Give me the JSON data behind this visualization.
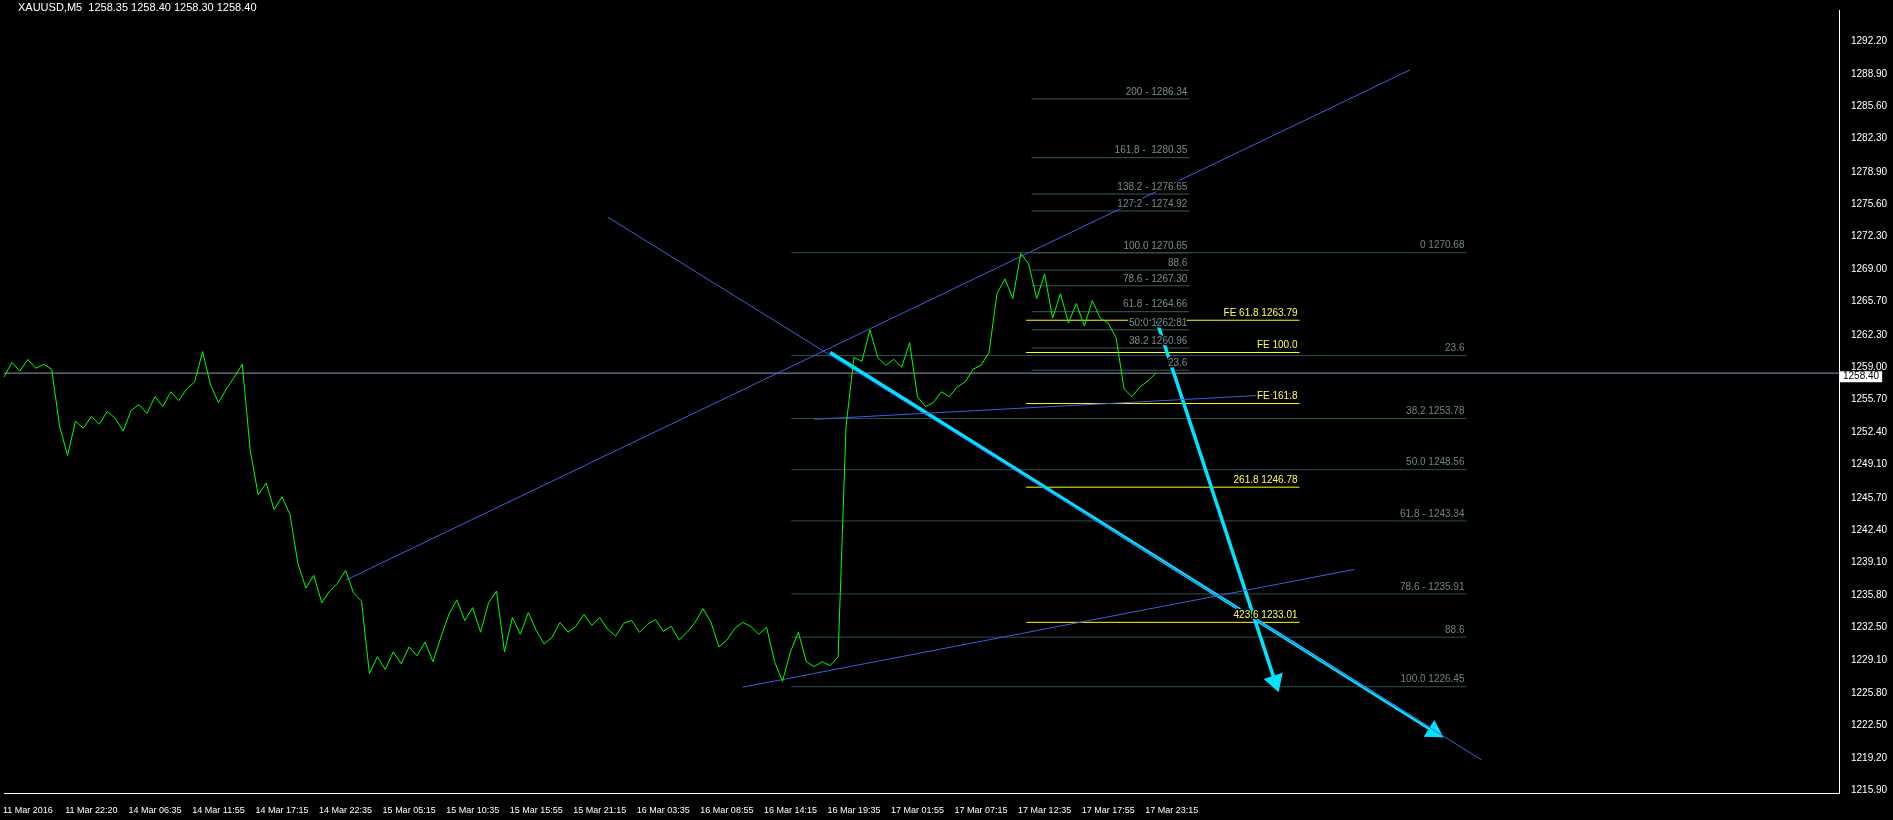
{
  "chart_data": {
    "type": "line",
    "title": "XAUUSD,M5  1258.35 1258.40 1258.30 1258.40",
    "categories": [
      null,
      null,
      null,
      "11 Mar 2016",
      null,
      null,
      null,
      null,
      null,
      null,
      null,
      "11 Mar 22:20",
      null,
      null,
      null,
      null,
      null,
      null,
      null,
      "14 Mar 06:35",
      null,
      null,
      null,
      null,
      null,
      null,
      null,
      "14 Mar 11:55",
      null,
      null,
      null,
      null,
      null,
      null,
      null,
      "14 Mar 17:15",
      null,
      null,
      null,
      null,
      null,
      null,
      null,
      "14 Mar 22:35",
      null,
      null,
      null,
      null,
      null,
      null,
      null,
      "15 Mar 05:15",
      null,
      null,
      null,
      null,
      null,
      null,
      null,
      "15 Mar 10:35",
      null,
      null,
      null,
      null,
      null,
      null,
      null,
      "15 Mar 15:55",
      null,
      null,
      null,
      null,
      null,
      null,
      null,
      "15 Mar 21:15",
      null,
      null,
      null,
      null,
      null,
      null,
      null,
      "16 Mar 03:35",
      null,
      null,
      null,
      null,
      null,
      null,
      null,
      "16 Mar 08:55",
      null,
      null,
      null,
      null,
      null,
      null,
      null,
      "16 Mar 14:15",
      null,
      null,
      null,
      null,
      null,
      null,
      null,
      "16 Mar 19:35",
      null,
      null,
      null,
      null,
      null,
      null,
      null,
      "17 Mar 01:55",
      null,
      null,
      null,
      null,
      null,
      null,
      null,
      "17 Mar 07:15",
      null,
      null,
      null,
      null,
      null,
      null,
      null,
      "17 Mar 12:35",
      null,
      null,
      null,
      null,
      null,
      null,
      null,
      "17 Mar 17:55",
      null,
      null,
      null,
      null,
      null,
      null,
      null,
      "17 Mar 23:15",
      null,
      null,
      null,
      null,
      null,
      null,
      null,
      null,
      null,
      null,
      null,
      null,
      null,
      null,
      null,
      null,
      null,
      null,
      null,
      null,
      null,
      null,
      null,
      null,
      null,
      null,
      null,
      null,
      null,
      null,
      null,
      null,
      null,
      null,
      null,
      null,
      null,
      null,
      null,
      null,
      null,
      null,
      null,
      null,
      null,
      null,
      null,
      null,
      null,
      null,
      null,
      null,
      null,
      null,
      null,
      null,
      null,
      null,
      null,
      null,
      null,
      null,
      null,
      null,
      null,
      null,
      null,
      null,
      null,
      null,
      null,
      null,
      null,
      null,
      null,
      null,
      null,
      null,
      null,
      null,
      null,
      null,
      null,
      null
    ],
    "series": [
      {
        "color": "#00ff00",
        "values": [
          1258.0,
          1259.5,
          1258.6,
          1259.8,
          1258.9,
          1259.3,
          1258.8,
          1253.0,
          1250.0,
          1253.5,
          1252.8,
          1254.0,
          1253.2,
          1254.5,
          1253.8,
          1252.5,
          1254.6,
          1255.2,
          1254.3,
          1256.0,
          1255.0,
          1256.5,
          1255.6,
          1256.8,
          1257.5,
          1260.6,
          1257.2,
          1255.4,
          1256.8,
          1258.0,
          1259.3,
          1250.5,
          1246.0,
          1247.2,
          1244.5,
          1245.8,
          1244.0,
          1239.0,
          1236.5,
          1237.8,
          1235.0,
          1236.2,
          1237.0,
          1238.3,
          1236.0,
          1235.2,
          1227.8,
          1229.5,
          1228.2,
          1230.0,
          1228.8,
          1230.5,
          1229.6,
          1231.0,
          1229.0,
          1231.5,
          1233.8,
          1235.3,
          1233.2,
          1234.5,
          1232.0,
          1235.0,
          1236.2,
          1230.0,
          1233.5,
          1231.8,
          1234.0,
          1232.2,
          1230.8,
          1231.5,
          1233.0,
          1232.0,
          1232.6,
          1233.8,
          1232.7,
          1233.5,
          1232.3,
          1231.6,
          1232.9,
          1233.2,
          1232.0,
          1232.8,
          1233.3,
          1232.1,
          1232.6,
          1231.2,
          1232.0,
          1233.0,
          1234.4,
          1233.0,
          1230.5,
          1231.2,
          1232.4,
          1233.0,
          1232.6,
          1231.8,
          1232.5,
          1229.0,
          1227.0,
          1230.0,
          1232.0,
          1229.0,
          1228.5,
          1229.0,
          1228.6,
          1229.5,
          1253.0,
          1260.0,
          1259.6,
          1262.8,
          1260.0,
          1259.2,
          1259.8,
          1259.0,
          1261.5,
          1256.0,
          1255.0,
          1255.4,
          1256.5,
          1256.0,
          1257.0,
          1257.5,
          1258.8,
          1259.2,
          1260.5,
          1266.5,
          1268.0,
          1266.0,
          1270.6,
          1269.5,
          1266.0,
          1268.5,
          1264.0,
          1266.5,
          1263.5,
          1265.5,
          1263.2,
          1265.8,
          1264.0,
          1263.5,
          1262.0,
          1256.8,
          1256.0,
          1257.0,
          1257.6,
          1258.4,
          null,
          null,
          null,
          null,
          null,
          null,
          null,
          null,
          null,
          null,
          null,
          null,
          null,
          null,
          null,
          null,
          null,
          null,
          null,
          null,
          null,
          null,
          null,
          null,
          null,
          null,
          null,
          null,
          null,
          null,
          null,
          null,
          null,
          null,
          null,
          null,
          null,
          null,
          null,
          null,
          null,
          null,
          null,
          null,
          null,
          null,
          null,
          null,
          null,
          null,
          null,
          null,
          null,
          null,
          null,
          null,
          null,
          null,
          null,
          null,
          null,
          null,
          null,
          null,
          null,
          null,
          null,
          null,
          null,
          null,
          null,
          null,
          null,
          null,
          null,
          null,
          null,
          null,
          null,
          null,
          null,
          null,
          null,
          null,
          null,
          null
        ]
      },
      {
        "color": "#3f5fe0",
        "values": [
          null,
          null,
          null,
          null,
          null,
          null,
          null,
          null,
          null,
          null,
          null,
          null,
          null,
          null,
          null,
          null,
          null,
          null,
          null,
          null,
          null,
          null,
          null,
          null,
          null,
          null,
          null,
          null,
          null,
          null,
          null,
          null,
          null,
          null,
          null,
          null,
          null,
          null,
          null,
          null,
          null,
          null,
          null,
          1237.3,
          null,
          null,
          null,
          null,
          null,
          null,
          null,
          null,
          null,
          null,
          null,
          null,
          null,
          null,
          null,
          null,
          null,
          null,
          null,
          null,
          null,
          null,
          null,
          null,
          null,
          null,
          null,
          null,
          null,
          null,
          null,
          null,
          null,
          null,
          null,
          null,
          null,
          null,
          null,
          null,
          null,
          null,
          null,
          null,
          null,
          null,
          null,
          null,
          null,
          null,
          null,
          null,
          null,
          null,
          null,
          null,
          null,
          null,
          null,
          null,
          null,
          null,
          null,
          null,
          null,
          null,
          null,
          null,
          null,
          null,
          null,
          null,
          null,
          null,
          null,
          null,
          null,
          null,
          null,
          null,
          null,
          null,
          null,
          null,
          null,
          null,
          null,
          null,
          null,
          null,
          null,
          null,
          null,
          null,
          null,
          null,
          null,
          null,
          null,
          null,
          null,
          null,
          null,
          null,
          null,
          null,
          null,
          null,
          null,
          null,
          null,
          null,
          null,
          null,
          null,
          null,
          null,
          null,
          null,
          null,
          null,
          null,
          null,
          null,
          null,
          null,
          null,
          null,
          null,
          null,
          null,
          null,
          null,
          1289.3,
          null,
          null,
          null,
          null,
          null,
          null,
          null,
          null,
          null,
          null,
          null,
          null,
          null,
          null,
          null,
          null,
          null,
          null,
          null,
          null,
          null,
          null,
          null,
          null,
          null,
          null,
          null,
          null,
          null,
          null,
          null,
          null,
          null,
          null,
          null,
          null,
          null,
          null,
          null,
          null,
          null,
          null,
          null,
          null,
          null,
          null,
          null,
          null,
          null,
          null,
          null,
          null,
          null,
          null
        ]
      },
      {
        "color": "#3f5fe0",
        "values": [
          null,
          null,
          null,
          null,
          null,
          null,
          null,
          null,
          null,
          null,
          null,
          null,
          null,
          null,
          null,
          null,
          null,
          null,
          null,
          null,
          null,
          null,
          null,
          null,
          null,
          null,
          null,
          null,
          null,
          null,
          null,
          null,
          null,
          null,
          null,
          null,
          null,
          null,
          null,
          null,
          null,
          null,
          null,
          null,
          null,
          null,
          null,
          null,
          null,
          null,
          null,
          null,
          null,
          null,
          null,
          null,
          null,
          null,
          null,
          null,
          null,
          null,
          null,
          null,
          null,
          null,
          null,
          null,
          null,
          null,
          null,
          null,
          null,
          null,
          null,
          null,
          1274.3,
          null,
          null,
          null,
          null,
          null,
          null,
          null,
          null,
          null,
          null,
          null,
          null,
          null,
          null,
          null,
          null,
          null,
          null,
          null,
          null,
          null,
          null,
          null,
          null,
          null,
          null,
          null,
          null,
          null,
          null,
          null,
          null,
          null,
          null,
          null,
          null,
          null,
          null,
          null,
          null,
          null,
          null,
          null,
          null,
          null,
          null,
          null,
          null,
          null,
          null,
          null,
          null,
          null,
          null,
          null,
          null,
          null,
          null,
          null,
          null,
          null,
          null,
          null,
          null,
          null,
          null,
          null,
          null,
          null,
          null,
          null,
          null,
          null,
          null,
          null,
          null,
          null,
          null,
          null,
          null,
          null,
          null,
          null,
          null,
          null,
          null,
          null,
          null,
          null,
          null,
          null,
          null,
          null,
          null,
          null,
          null,
          null,
          null,
          null,
          null,
          null,
          null,
          null,
          null,
          null,
          null,
          null,
          null,
          null,
          1219.0,
          null,
          null,
          null,
          null,
          null,
          null,
          null,
          null,
          null,
          null,
          null,
          null,
          null,
          null,
          null,
          null,
          null,
          null,
          null,
          null,
          null,
          null,
          null,
          null,
          null,
          null,
          null,
          null,
          null,
          null,
          null,
          null,
          null,
          null,
          null,
          null,
          null,
          null,
          null,
          null,
          null,
          null,
          null,
          null,
          null
        ]
      },
      {
        "color": "#3f5fe0",
        "values": [
          null,
          null,
          null,
          null,
          null,
          null,
          null,
          null,
          null,
          null,
          null,
          null,
          null,
          null,
          null,
          null,
          null,
          null,
          null,
          null,
          null,
          null,
          null,
          null,
          null,
          null,
          null,
          null,
          null,
          null,
          null,
          null,
          null,
          null,
          null,
          null,
          null,
          null,
          null,
          null,
          null,
          null,
          null,
          null,
          null,
          null,
          null,
          null,
          null,
          null,
          null,
          null,
          null,
          null,
          null,
          null,
          null,
          null,
          null,
          null,
          null,
          null,
          null,
          null,
          null,
          null,
          null,
          null,
          null,
          null,
          null,
          null,
          null,
          null,
          null,
          null,
          null,
          null,
          null,
          null,
          null,
          null,
          null,
          null,
          null,
          null,
          null,
          null,
          null,
          null,
          null,
          null,
          null,
          1226.4,
          null,
          null,
          null,
          null,
          null,
          null,
          null,
          null,
          null,
          null,
          null,
          null,
          null,
          null,
          null,
          null,
          null,
          null,
          null,
          null,
          null,
          null,
          null,
          null,
          null,
          null,
          null,
          null,
          null,
          null,
          null,
          null,
          null,
          null,
          null,
          null,
          null,
          null,
          null,
          null,
          null,
          null,
          null,
          null,
          null,
          null,
          null,
          null,
          null,
          null,
          null,
          null,
          null,
          null,
          null,
          null,
          null,
          null,
          null,
          null,
          null,
          null,
          null,
          null,
          null,
          null,
          null,
          null,
          null,
          null,
          null,
          null,
          null,
          null,
          null,
          null,
          1238.4,
          null,
          null,
          null,
          null,
          null,
          null,
          null,
          null,
          null,
          null,
          null,
          null,
          null,
          null,
          null,
          null,
          null,
          null,
          null,
          null,
          null,
          null,
          null,
          null,
          null,
          null,
          null,
          null,
          null,
          null,
          null,
          null,
          null,
          null,
          null,
          null,
          null,
          null,
          null,
          null,
          null,
          null,
          null,
          null,
          null,
          null,
          null,
          null,
          null,
          null,
          null,
          null,
          null,
          null,
          null,
          null,
          null,
          null,
          null,
          null,
          null
        ]
      },
      {
        "color": "#3f5fe0",
        "values": [
          null,
          null,
          null,
          null,
          null,
          null,
          null,
          null,
          null,
          null,
          null,
          null,
          null,
          null,
          null,
          null,
          null,
          null,
          null,
          null,
          null,
          null,
          null,
          null,
          null,
          null,
          null,
          null,
          null,
          null,
          null,
          null,
          null,
          null,
          null,
          null,
          null,
          null,
          null,
          null,
          null,
          null,
          null,
          null,
          null,
          null,
          null,
          null,
          null,
          null,
          null,
          null,
          null,
          null,
          null,
          null,
          null,
          null,
          null,
          null,
          null,
          null,
          null,
          null,
          null,
          null,
          null,
          null,
          null,
          null,
          null,
          null,
          null,
          null,
          null,
          null,
          null,
          null,
          null,
          null,
          null,
          null,
          null,
          null,
          null,
          null,
          null,
          null,
          null,
          null,
          null,
          null,
          null,
          null,
          null,
          null,
          null,
          null,
          null,
          null,
          null,
          null,
          1253.7,
          null,
          null,
          null,
          null,
          null,
          null,
          null,
          null,
          null,
          null,
          null,
          null,
          null,
          null,
          null,
          null,
          null,
          null,
          null,
          null,
          null,
          null,
          null,
          null,
          null,
          null,
          null,
          null,
          null,
          null,
          null,
          null,
          null,
          null,
          null,
          null,
          null,
          null,
          null,
          null,
          null,
          null,
          null,
          null,
          null,
          null,
          null,
          null,
          null,
          null,
          null,
          null,
          null,
          null,
          null,
          null,
          null,
          null,
          null,
          1256.3,
          null,
          null,
          null,
          null,
          null,
          null,
          null,
          null,
          null,
          null,
          null,
          null,
          null,
          null,
          null,
          null,
          null,
          null,
          null,
          null,
          null,
          null,
          null,
          null,
          null,
          null,
          null,
          null,
          null,
          null,
          null,
          null,
          null,
          null,
          null,
          null,
          null,
          null,
          null,
          null,
          null,
          null,
          null,
          null,
          null,
          null,
          null,
          null,
          null,
          null,
          null,
          null,
          null,
          null,
          null,
          null,
          null,
          null,
          null,
          null,
          null,
          null,
          null,
          null,
          null,
          null,
          null,
          null,
          null
        ]
      },
      {
        "color": "#00e5ff",
        "marker": "triangle",
        "values": [
          null,
          null,
          null,
          null,
          null,
          null,
          null,
          null,
          null,
          null,
          null,
          null,
          null,
          null,
          null,
          null,
          null,
          null,
          null,
          null,
          null,
          null,
          null,
          null,
          null,
          null,
          null,
          null,
          null,
          null,
          null,
          null,
          null,
          null,
          null,
          null,
          null,
          null,
          null,
          null,
          null,
          null,
          null,
          null,
          null,
          null,
          null,
          null,
          null,
          null,
          null,
          null,
          null,
          null,
          null,
          null,
          null,
          null,
          null,
          null,
          null,
          null,
          null,
          null,
          null,
          null,
          null,
          null,
          null,
          null,
          null,
          null,
          null,
          null,
          null,
          null,
          null,
          null,
          null,
          null,
          null,
          null,
          null,
          null,
          null,
          null,
          null,
          null,
          null,
          null,
          null,
          null,
          null,
          null,
          null,
          null,
          null,
          null,
          null,
          null,
          null,
          null,
          null,
          null,
          1260.5,
          null,
          null,
          null,
          null,
          null,
          null,
          null,
          null,
          null,
          null,
          null,
          null,
          null,
          null,
          null,
          null,
          null,
          null,
          null,
          null,
          null,
          null,
          null,
          null,
          null,
          null,
          null,
          null,
          null,
          null,
          null,
          null,
          null,
          null,
          null,
          null,
          null,
          null,
          null,
          null,
          null,
          null,
          null,
          null,
          null,
          null,
          null,
          null,
          null,
          null,
          null,
          null,
          null,
          null,
          null,
          null,
          null,
          null,
          null,
          null,
          null,
          null,
          null,
          null,
          null,
          null,
          null,
          null,
          null,
          null,
          null,
          null,
          null,
          null,
          null,
          1221.9,
          null,
          null,
          null,
          null,
          null,
          null,
          null,
          null,
          null,
          null,
          null,
          null,
          null,
          null,
          null,
          null,
          null,
          null,
          null,
          null,
          null,
          null,
          null,
          null,
          null,
          null,
          null,
          null,
          null,
          null,
          null,
          null,
          null,
          null,
          null,
          null,
          null,
          null,
          null,
          null,
          null,
          null,
          null,
          null,
          null,
          null,
          null,
          null,
          null,
          null,
          null
        ]
      },
      {
        "color": "#00e5ff",
        "marker": "triangle",
        "values": [
          null,
          null,
          null,
          null,
          null,
          null,
          null,
          null,
          null,
          null,
          null,
          null,
          null,
          null,
          null,
          null,
          null,
          null,
          null,
          null,
          null,
          null,
          null,
          null,
          null,
          null,
          null,
          null,
          null,
          null,
          null,
          null,
          null,
          null,
          null,
          null,
          null,
          null,
          null,
          null,
          null,
          null,
          null,
          null,
          null,
          null,
          null,
          null,
          null,
          null,
          null,
          null,
          null,
          null,
          null,
          null,
          null,
          null,
          null,
          null,
          null,
          null,
          null,
          null,
          null,
          null,
          null,
          null,
          null,
          null,
          null,
          null,
          null,
          null,
          null,
          null,
          null,
          null,
          null,
          null,
          null,
          null,
          null,
          null,
          null,
          null,
          null,
          null,
          null,
          null,
          null,
          null,
          null,
          null,
          null,
          null,
          null,
          null,
          null,
          null,
          null,
          null,
          null,
          null,
          null,
          null,
          null,
          null,
          null,
          null,
          null,
          null,
          null,
          null,
          null,
          null,
          null,
          null,
          null,
          null,
          null,
          null,
          null,
          null,
          null,
          null,
          null,
          null,
          null,
          null,
          null,
          null,
          null,
          null,
          null,
          null,
          null,
          null,
          null,
          null,
          null,
          null,
          null,
          null,
          null,
          1264.0,
          null,
          null,
          null,
          null,
          null,
          null,
          null,
          null,
          null,
          null,
          null,
          null,
          null,
          null,
          1227.0,
          null,
          null,
          null,
          null,
          null,
          null,
          null,
          null,
          null,
          null,
          null,
          null,
          null,
          null,
          null,
          null,
          null,
          null,
          null,
          null,
          null,
          null,
          null,
          null,
          null,
          null,
          null,
          null,
          null,
          null,
          null,
          null,
          null,
          null,
          null,
          null,
          null,
          null,
          null,
          null,
          null,
          null,
          null,
          null,
          null,
          null,
          null,
          null,
          null,
          null,
          null,
          null,
          null,
          null,
          null,
          null,
          null,
          null,
          null,
          null,
          null,
          null,
          null,
          null,
          null,
          null,
          null,
          null,
          null,
          null,
          null
        ]
      }
    ],
    "ylim": [
      1215.6,
      1295.4
    ],
    "yticks": [
      {
        "value": 1215.9,
        "label": "1215.90"
      },
      {
        "value": 1219.2,
        "label": "1219.20"
      },
      {
        "value": 1222.5,
        "label": "1222.50"
      },
      {
        "value": 1225.8,
        "label": "1225.80"
      },
      {
        "value": 1229.1,
        "label": "1229.10"
      },
      {
        "value": 1232.5,
        "label": "1232.50"
      },
      {
        "value": 1235.8,
        "label": "1235.80"
      },
      {
        "value": 1239.1,
        "label": "1239.10"
      },
      {
        "value": 1242.4,
        "label": "1242.40"
      },
      {
        "value": 1245.7,
        "label": "1245.70"
      },
      {
        "value": 1249.1,
        "label": "1249.10"
      },
      {
        "value": 1252.4,
        "label": "1252.40"
      },
      {
        "value": 1255.7,
        "label": "1255.70"
      },
      {
        "value": 1259.0,
        "label": "1259.00"
      },
      {
        "value": 1262.3,
        "label": "1262.30"
      },
      {
        "value": 1265.7,
        "label": "1265.70"
      },
      {
        "value": 1269.0,
        "label": "1269.00"
      },
      {
        "value": 1272.3,
        "label": "1272.30"
      },
      {
        "value": 1275.6,
        "label": "1275.60"
      },
      {
        "value": 1278.9,
        "label": "1278.90"
      },
      {
        "value": 1282.3,
        "label": "1282.30"
      },
      {
        "value": 1285.6,
        "label": "1285.60"
      },
      {
        "value": 1288.9,
        "label": "1288.90"
      },
      {
        "value": 1292.2,
        "label": "1292.20"
      }
    ],
    "ref_lines": [
      {
        "axis": "y",
        "value": 1286.34,
        "color": "#3b5a5a"
      },
      {
        "axis": "y",
        "value": 1280.35,
        "color": "#3b5a5a"
      },
      {
        "axis": "y",
        "value": 1276.65,
        "color": "#3b5a5a"
      },
      {
        "axis": "y",
        "value": 1274.92,
        "color": "#3b5a5a"
      },
      {
        "axis": "y",
        "value": 1270.65,
        "color": "#3b5a5a"
      },
      {
        "axis": "y",
        "value": 1268.9,
        "color": "#3b5a5a"
      },
      {
        "axis": "y",
        "value": 1267.3,
        "color": "#3b5a5a"
      },
      {
        "axis": "y",
        "value": 1264.66,
        "color": "#3b5a5a"
      },
      {
        "axis": "y",
        "value": 1262.81,
        "color": "#3b5a5a"
      },
      {
        "axis": "y",
        "value": 1260.96,
        "color": "#3b5a5a"
      },
      {
        "axis": "y",
        "value": 1258.7,
        "color": "#3b5a5a"
      },
      {
        "axis": "y",
        "value": 1263.79,
        "color": "#ffff00"
      },
      {
        "axis": "y",
        "value": 1260.5,
        "label": "FE 100.0",
        "color": "#ffff00"
      },
      {
        "axis": "y",
        "value": 1255.3,
        "label": "FE 161.8",
        "color": "#ffff00"
      },
      {
        "axis": "y",
        "value": 1246.78,
        "color": "#ffff00"
      },
      {
        "axis": "y",
        "value": 1233.01,
        "color": "#ffff00"
      },
      {
        "axis": "y",
        "value": 1270.68,
        "color": "#2f4f4f"
      },
      {
        "axis": "y",
        "value": 1260.2,
        "color": "#2f4f4f"
      },
      {
        "axis": "y",
        "value": 1253.78,
        "color": "#2f4f4f"
      },
      {
        "axis": "y",
        "value": 1248.56,
        "color": "#2f4f4f"
      },
      {
        "axis": "y",
        "value": 1243.34,
        "color": "#2f4f4f"
      },
      {
        "axis": "y",
        "value": 1235.91,
        "color": "#2f4f4f"
      },
      {
        "axis": "y",
        "value": 1231.5,
        "color": "#2f4f4f"
      },
      {
        "axis": "y",
        "value": 1226.45,
        "color": "#2f4f4f"
      },
      {
        "axis": "y",
        "value": 1258.4,
        "label": "1258.40",
        "color": "#8a9bb8"
      }
    ],
    "annotations": [
      {
        "text": "200 - 1286.34",
        "y": 1286.34
      },
      {
        "text": "161.8 -  1280.35",
        "y": 1280.35
      },
      {
        "text": "138.2 - 1276.65",
        "y": 1276.65
      },
      {
        "text": "127.2 - 1274.92",
        "y": 1274.92
      },
      {
        "text": "100.0 1270.65",
        "y": 1270.65
      },
      {
        "text": "88.6",
        "y": 1268.9
      },
      {
        "text": "78.6 - 1267.30",
        "y": 1267.3
      },
      {
        "text": "61.8 - 1264.66",
        "y": 1264.66
      },
      {
        "text": "50.0 1262.81",
        "y": 1262.81
      },
      {
        "text": "38.2 1260.96",
        "y": 1260.96
      },
      {
        "text": "23.6",
        "y": 1258.7
      },
      {
        "text": "FE 61.8 1263.79",
        "y": 1263.79
      },
      {
        "text": "261.8 1246.78",
        "y": 1246.78
      },
      {
        "text": "423.6 1233.01",
        "y": 1233.01
      },
      {
        "text": "0 1270.68",
        "y": 1270.68
      },
      {
        "text": "23.6",
        "y": 1260.2
      },
      {
        "text": "38.2 1253.78",
        "y": 1253.78
      },
      {
        "text": "50.0 1248.56",
        "y": 1248.56
      },
      {
        "text": "61.8 - 1243.34",
        "y": 1243.34
      },
      {
        "text": "78.6 - 1235.91",
        "y": 1235.91
      },
      {
        "text": "88.6",
        "y": 1231.5
      },
      {
        "text": "100.0 1226.45",
        "y": 1226.45
      }
    ],
    "grid": false,
    "legend": false
  }
}
